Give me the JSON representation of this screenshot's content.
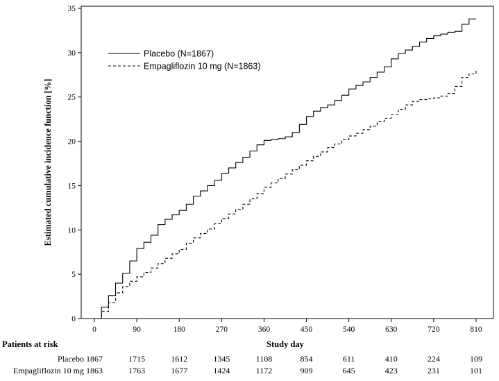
{
  "chart_data": {
    "type": "line",
    "xlabel": "Study day",
    "ylabel": "Estimated cumulative incidence function [%]",
    "xlim": [
      0,
      810
    ],
    "ylim": [
      0,
      35
    ],
    "x_ticks": [
      0,
      90,
      180,
      270,
      360,
      450,
      540,
      630,
      720,
      810
    ],
    "y_ticks": [
      0,
      5,
      10,
      15,
      20,
      25,
      30,
      35
    ],
    "legend_position": "top-left",
    "grid": false,
    "series": [
      {
        "name": "Placebo (N=1867)",
        "line_style": "solid",
        "color": "#000000",
        "x": [
          0,
          15,
          30,
          45,
          60,
          75,
          90,
          105,
          120,
          135,
          150,
          165,
          180,
          195,
          210,
          225,
          240,
          255,
          270,
          285,
          300,
          315,
          330,
          345,
          360,
          375,
          390,
          405,
          420,
          435,
          450,
          465,
          480,
          495,
          510,
          525,
          540,
          555,
          570,
          585,
          600,
          615,
          630,
          645,
          660,
          675,
          690,
          705,
          720,
          735,
          750,
          765,
          780,
          795,
          810
        ],
        "values": [
          0,
          1.3,
          2.6,
          4.0,
          5.1,
          6.5,
          7.9,
          8.6,
          9.4,
          10.6,
          11.2,
          11.7,
          12.2,
          12.9,
          13.8,
          14.4,
          15.0,
          15.6,
          16.4,
          17.0,
          17.6,
          18.2,
          18.9,
          19.6,
          20.1,
          20.2,
          20.3,
          20.5,
          21.0,
          21.9,
          22.8,
          23.4,
          23.8,
          24.1,
          24.6,
          25.2,
          25.9,
          26.3,
          26.7,
          27.2,
          27.8,
          28.4,
          29.3,
          29.9,
          30.3,
          30.7,
          31.2,
          31.6,
          31.9,
          32.1,
          32.3,
          32.4,
          33.2,
          33.8,
          33.8
        ]
      },
      {
        "name": "Empagliflozin 10 mg (N=1863)",
        "line_style": "dashed",
        "color": "#000000",
        "x": [
          0,
          15,
          30,
          45,
          60,
          75,
          90,
          105,
          120,
          135,
          150,
          165,
          180,
          195,
          210,
          225,
          240,
          255,
          270,
          285,
          300,
          315,
          330,
          345,
          360,
          375,
          390,
          405,
          420,
          435,
          450,
          465,
          480,
          495,
          510,
          525,
          540,
          555,
          570,
          585,
          600,
          615,
          630,
          645,
          660,
          675,
          690,
          705,
          720,
          735,
          750,
          765,
          780,
          795,
          810
        ],
        "values": [
          0,
          0.8,
          1.8,
          2.9,
          3.6,
          4.2,
          4.7,
          5.2,
          5.7,
          6.2,
          6.8,
          7.3,
          7.8,
          8.5,
          9.1,
          9.6,
          10.1,
          10.7,
          11.3,
          11.8,
          12.3,
          12.9,
          13.5,
          14.1,
          14.8,
          15.3,
          15.8,
          16.3,
          16.8,
          17.3,
          17.8,
          18.3,
          18.8,
          19.3,
          19.7,
          20.2,
          20.6,
          20.9,
          21.3,
          21.7,
          22.2,
          22.6,
          23.0,
          23.6,
          24.1,
          24.5,
          24.7,
          24.8,
          24.9,
          25.1,
          25.4,
          26.2,
          27.2,
          27.6,
          28.0
        ]
      }
    ],
    "risk_table": {
      "title": "Patients at risk",
      "days": [
        0,
        90,
        180,
        270,
        360,
        450,
        540,
        630,
        720,
        810
      ],
      "rows": [
        {
          "label": "Placebo",
          "values": [
            "1867",
            "1715",
            "1612",
            "1345",
            "1108",
            "854",
            "611",
            "410",
            "224",
            "109"
          ]
        },
        {
          "label": "Empagliflozin 10 mg",
          "values": [
            "1863",
            "1763",
            "1677",
            "1424",
            "1172",
            "909",
            "645",
            "423",
            "231",
            "101"
          ]
        }
      ]
    }
  }
}
